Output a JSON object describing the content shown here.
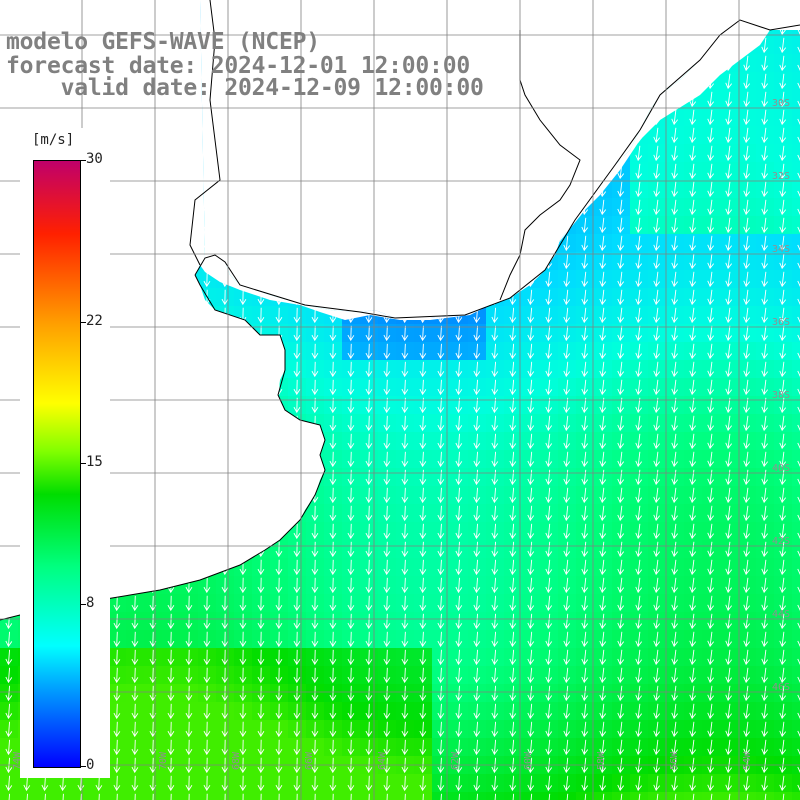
{
  "title": {
    "line1": "modelo GEFS-WAVE (NCEP)",
    "line2": "forecast date: 2024-12-01 12:00:00",
    "line3": "    valid date: 2024-12-09 12:00:00"
  },
  "legend": {
    "unit": "[m/s]",
    "ticks": [
      {
        "label": "30",
        "value": 30
      },
      {
        "label": "22",
        "value": 22
      },
      {
        "label": "15",
        "value": 15
      },
      {
        "label": "8",
        "value": 8
      },
      {
        "label": "0",
        "value": 0
      }
    ],
    "range": [
      0,
      30
    ]
  },
  "map": {
    "lat_labels": [
      "30S",
      "32S",
      "34S",
      "36S",
      "38S",
      "40S",
      "42S",
      "44S",
      "46S"
    ],
    "lon_labels": [
      "74W",
      "72W",
      "70W",
      "68W",
      "66W",
      "64W",
      "62W",
      "60W",
      "58W",
      "56W",
      "54W"
    ],
    "land_color": "#ffffff",
    "coast_color": "#000000",
    "grid_color": "#808080",
    "arrow_color": "#ffffff",
    "variable": "wind speed",
    "wind_direction": "from NNE to SSW"
  }
}
